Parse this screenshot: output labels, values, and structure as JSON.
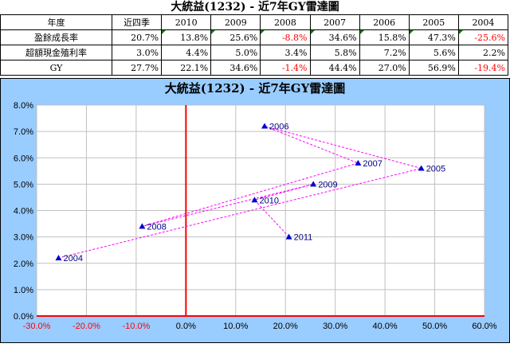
{
  "title": "大統益(1232) - 近7年GY雷達圖",
  "table": {
    "corner": "年度",
    "columns": [
      "近四季",
      "2010",
      "2009",
      "2008",
      "2007",
      "2006",
      "2005",
      "2004"
    ],
    "rows": [
      {
        "label": "盈餘成長率",
        "values": [
          "20.7%",
          "13.8%",
          "25.6%",
          "-8.8%",
          "34.6%",
          "15.8%",
          "47.3%",
          "-25.6%"
        ]
      },
      {
        "label": "超額現金殖利率",
        "values": [
          "3.0%",
          "4.4%",
          "5.0%",
          "3.4%",
          "5.8%",
          "7.2%",
          "5.6%",
          "2.2%"
        ]
      },
      {
        "label": "GY",
        "values": [
          "27.7%",
          "22.1%",
          "34.6%",
          "-1.4%",
          "44.4%",
          "27.0%",
          "56.9%",
          "-19.4%"
        ]
      }
    ]
  },
  "chart_data": {
    "type": "scatter",
    "title": "大統益(1232) - 近7年GY雷達圖",
    "xlim": [
      -0.3,
      0.6
    ],
    "ylim": [
      0,
      0.08
    ],
    "x_ticks": [
      "-30.0%",
      "-20.0%",
      "-10.0%",
      "0.0%",
      "10.0%",
      "20.0%",
      "30.0%",
      "40.0%",
      "50.0%",
      "60.0%"
    ],
    "y_ticks": [
      "0.0%",
      "1.0%",
      "2.0%",
      "3.0%",
      "4.0%",
      "5.0%",
      "6.0%",
      "7.0%",
      "8.0%"
    ],
    "grid": true,
    "points": [
      {
        "label": "2011",
        "x": 0.207,
        "y": 0.03
      },
      {
        "label": "2010",
        "x": 0.138,
        "y": 0.044
      },
      {
        "label": "2009",
        "x": 0.256,
        "y": 0.05
      },
      {
        "label": "2008",
        "x": -0.088,
        "y": 0.034
      },
      {
        "label": "2007",
        "x": 0.346,
        "y": 0.058
      },
      {
        "label": "2006",
        "x": 0.158,
        "y": 0.072
      },
      {
        "label": "2005",
        "x": 0.473,
        "y": 0.056
      },
      {
        "label": "2004",
        "x": -0.256,
        "y": 0.022
      }
    ],
    "colors": {
      "marker": "#0000cc",
      "line": "#ff00ff",
      "axis_zero": "#ff0000",
      "neg_tick": "#ff0000",
      "pos_tick": "#000000",
      "plot_bg": "#ffffff",
      "chart_bg": "#99ccff",
      "grid": "#c0c0c0"
    }
  }
}
